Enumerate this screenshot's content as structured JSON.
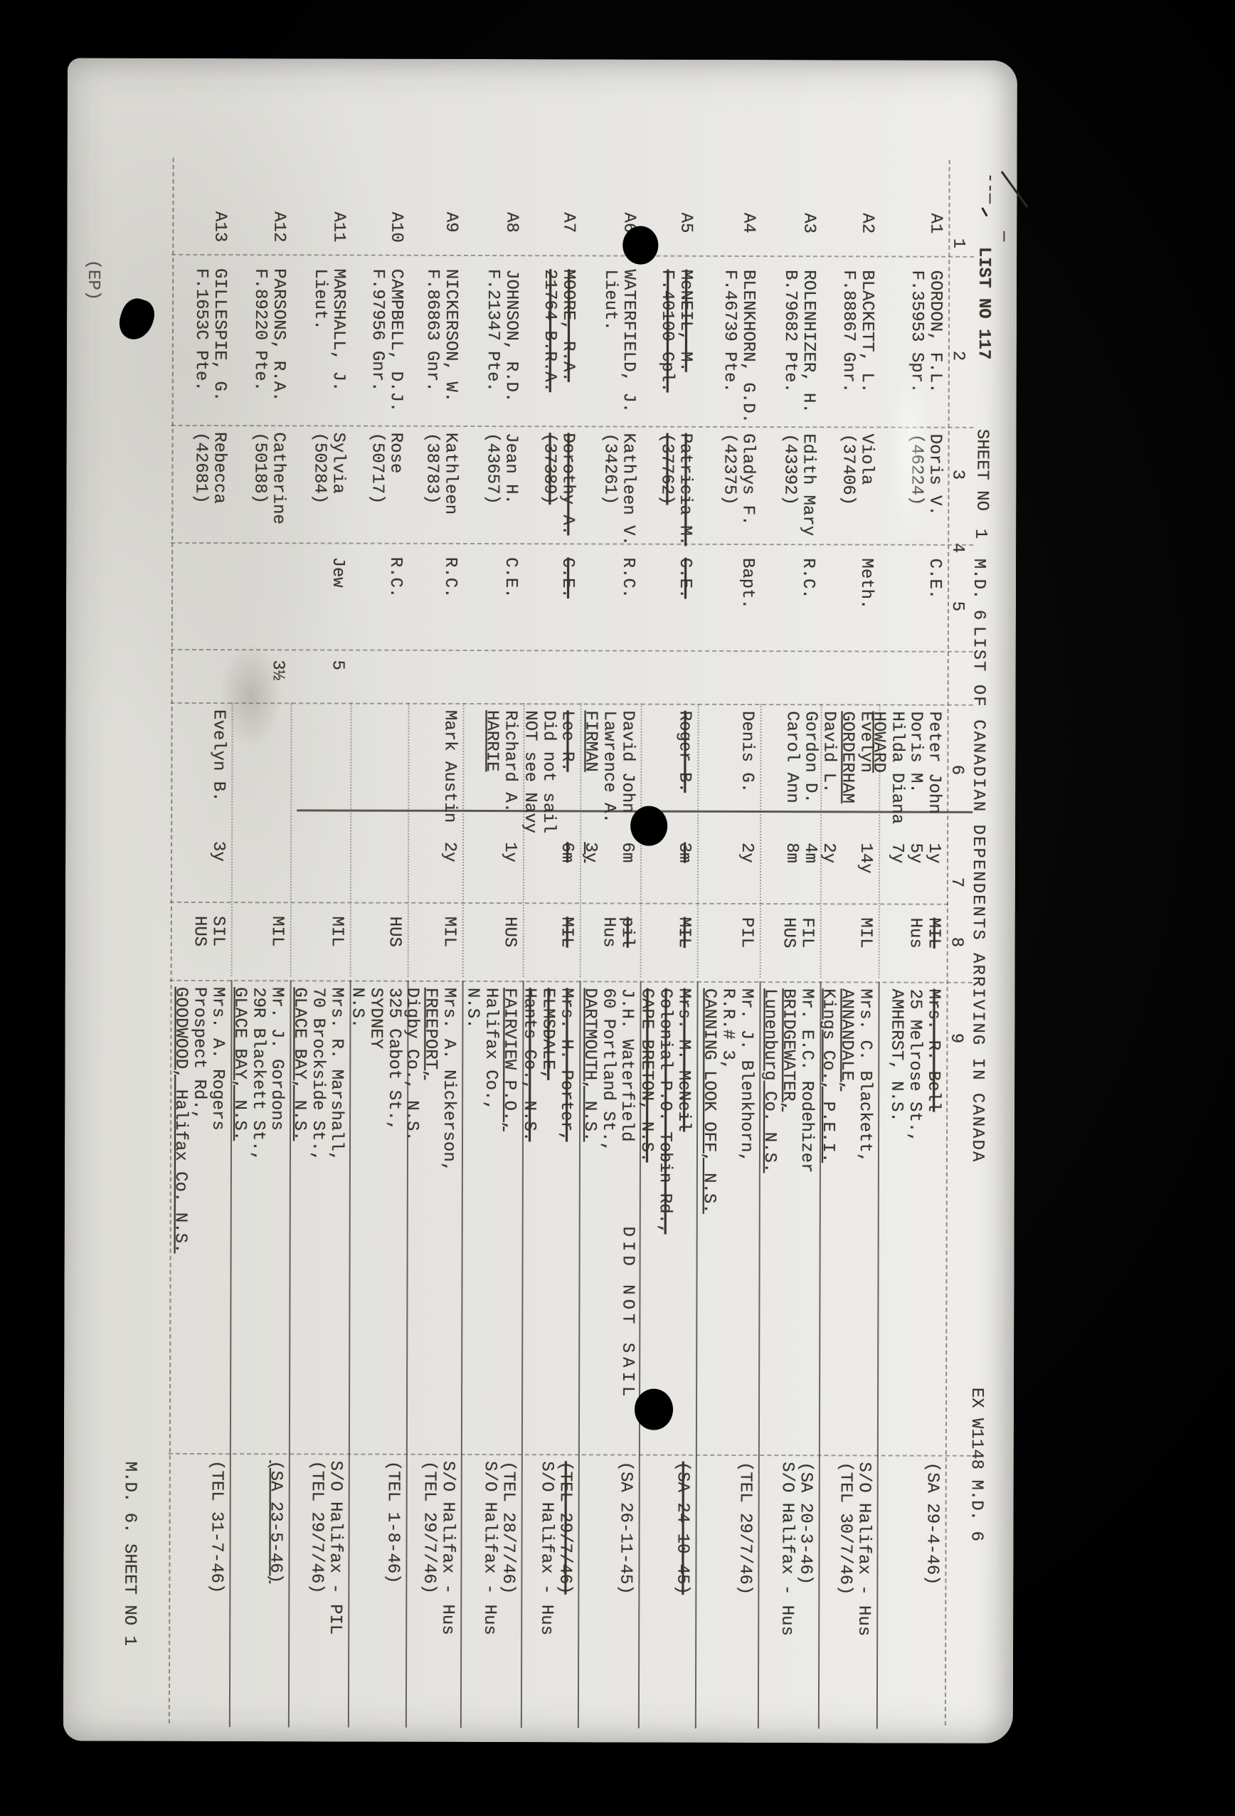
{
  "page": {
    "header": {
      "list_no": "LIST NO 117",
      "sheet_no_label": "SHEET NO",
      "sheet_no": "1",
      "md": "M.D. 6",
      "title": "LIST OF CANADIAN DEPENDENTS ARRIVING IN CANADA",
      "ex_ref": "EX W1148 M.D. 6"
    },
    "column_numbers": [
      "1",
      "2",
      "3",
      "4",
      "5",
      "6",
      "7",
      "8",
      "9"
    ],
    "notes": {
      "did_not_sail": "DID NOT SAIL"
    },
    "footer_left": "(EP)",
    "footer_right": "M.D. 6. SHEET NO 1",
    "rows": [
      {
        "sn": "A1",
        "name": [
          "GORDON, F.L.",
          "F.35953 Spr."
        ],
        "wife": [
          "Doris V.",
          "(46224)"
        ],
        "religion": "C.E.",
        "n5": "",
        "kids": [
          {
            "n": "Peter John",
            "a": "1y"
          },
          {
            "n": "Doris M.",
            "a": "5y"
          },
          {
            "n": "Hilda Diana",
            "a": "7y"
          },
          {
            "n": "HOWARD",
            "a": "",
            "f": "u"
          }
        ],
        "rel": [
          [
            "MIL",
            "s"
          ],
          [
            "Hus",
            ""
          ]
        ],
        "addr": [
          [
            "Mrs. R. Bell",
            "s"
          ],
          [
            "25 Melrose St.,",
            ""
          ],
          [
            "AMHERST, N.S.",
            ""
          ]
        ],
        "disp": [
          [
            "(SA 29-4-46)",
            ""
          ]
        ]
      },
      {
        "sn": "A2",
        "name": [
          "BLACKETT, L.",
          "F.88867 Gnr."
        ],
        "wife": [
          "Viola",
          "(37406)"
        ],
        "religion": "Meth.",
        "n5": "",
        "kids": [
          {
            "n": "Evelyn",
            "a": "14y"
          },
          {
            "n": "GORDERHAM",
            "a": "",
            "f": "u"
          },
          {
            "n": "David L.",
            "a": "2y"
          },
          {
            "n": "Gordon D.",
            "a": "4m"
          },
          {
            "n": "Carol Ann",
            "a": "8m"
          }
        ],
        "rel": [
          [
            "MIL",
            ""
          ]
        ],
        "addr": [
          [
            "Mrs. C. Blackett,",
            ""
          ],
          [
            "ANNANDALE,",
            "u"
          ],
          [
            "Kings Co., P.E.I.",
            "u"
          ]
        ],
        "disp": [
          [
            "S/O Halifax - Hus",
            ""
          ],
          [
            "(TEL 30/7/46)",
            ""
          ]
        ]
      },
      {
        "sn": "A3",
        "name": [
          "ROLENHIZER, H.",
          "B.79682 Pte."
        ],
        "wife": [
          "Edith Mary",
          "(43392)"
        ],
        "religion": "R.C.",
        "n5": "",
        "kids": [],
        "rel": [
          [
            "FIL",
            ""
          ],
          [
            "HUS",
            ""
          ]
        ],
        "addr": [
          [
            "Mr. E.C. Rodehizer",
            ""
          ],
          [
            "BRIDGEWATER,",
            "u"
          ],
          [
            "Lunenburg Co. N.S.",
            "u"
          ]
        ],
        "disp": [
          [
            "(SA 20-3-46)",
            ""
          ],
          [
            "S/O Halifax - Hus",
            ""
          ]
        ]
      },
      {
        "sn": "A4",
        "name": [
          "BLENKHORN, G.D.",
          "F.46739 Pte."
        ],
        "wife": [
          "Gladys F.",
          "(42375)"
        ],
        "religion": "Bapt.",
        "n5": "",
        "kids": [
          {
            "n": "Denis G.",
            "a": "2y"
          }
        ],
        "rel": [
          [
            "PIL",
            ""
          ]
        ],
        "addr": [
          [
            "Mr. J. Blenkhorn,",
            ""
          ],
          [
            "R.R.# 3,",
            ""
          ],
          [
            "CANNING LOOK OFF, N.S.",
            "u"
          ]
        ],
        "disp": [
          [
            "(TEL 29/7/46)",
            ""
          ]
        ]
      },
      {
        "sn": "A5",
        "name": [
          [
            "McNEIL, M.",
            "s"
          ],
          [
            "F.40100 Cpl.",
            "s"
          ]
        ],
        "wife": [
          [
            "Patricia M.",
            "s"
          ],
          [
            "(37762)",
            "s"
          ]
        ],
        "religion": [
          "C.E.",
          "s"
        ],
        "n5": "",
        "kids": [
          {
            "n": "Roger B.",
            "a": "3m",
            "f": "s"
          }
        ],
        "rel": [
          [
            "MIL",
            "s"
          ]
        ],
        "addr": [
          [
            "Mrs. M. McNeil",
            "s"
          ],
          [
            "Colonial P.O. Tobin Rd.,",
            "s"
          ],
          [
            "CAPE BRETON, N.S.",
            "s"
          ]
        ],
        "disp": [
          [
            "(SA 24-10-45)",
            "s"
          ]
        ]
      },
      {
        "sn": "A6",
        "name": [
          "WATERFIELD, J.",
          "Lieut."
        ],
        "wife": [
          "Kathleen V.",
          "(34261)"
        ],
        "religion": "R.C.",
        "n5": "",
        "kids": [
          {
            "n": "David John",
            "a": "6m"
          },
          {
            "n": "Lawrence A.",
            "a": ""
          },
          {
            "n": "FIRMAN",
            "a": "3y",
            "f": "u"
          }
        ],
        "rel": [
          [
            "pil",
            "s"
          ],
          [
            "Hus",
            ""
          ]
        ],
        "addr": [
          [
            "J.H. Waterfield",
            ""
          ],
          [
            "60 Portland St.,",
            ""
          ],
          [
            "DARTMOUTH, N.S.",
            "u"
          ]
        ],
        "disp": [
          [
            "(SA 26-11-45)",
            ""
          ]
        ]
      },
      {
        "sn": "A7",
        "name": [
          [
            "MOORE, R.A.",
            "s"
          ],
          [
            "21764 B.R.A.",
            "s"
          ]
        ],
        "wife": [
          [
            "Dorothy A.",
            "s"
          ],
          [
            "(37389)",
            "s"
          ]
        ],
        "religion": [
          "C.E.",
          "s"
        ],
        "n5": "",
        "kids": [
          {
            "n": "Lee R.",
            "a": "6m",
            "f": "s"
          },
          {
            "n": "Did not sail",
            "a": ""
          },
          {
            "n": "NOT see Navy",
            "a": ""
          }
        ],
        "rel": [
          [
            "MIL",
            "s"
          ]
        ],
        "addr": [
          [
            "Mrs. H. Porter,",
            "s"
          ],
          [
            "ELMSDALE,",
            "s"
          ],
          [
            "Hants Co., N.S.",
            "s"
          ]
        ],
        "disp": [
          [
            "(TEL 29/7/46)",
            "s"
          ],
          [
            "S/O Halifax - Hus",
            ""
          ]
        ]
      },
      {
        "sn": "A8",
        "name": [
          "JOHNSON, R.D.",
          "F.21347 Pte."
        ],
        "wife": [
          "Jean H.",
          "(43657)"
        ],
        "religion": "C.E.",
        "n5": "",
        "kids": [
          {
            "n": "Richard A.",
            "a": "1y"
          },
          {
            "n": "HARRIE",
            "a": "",
            "f": "u"
          }
        ],
        "rel": [
          [
            "HUS",
            ""
          ]
        ],
        "addr": [
          [
            "FAIRVIEW P.O.,",
            "u"
          ],
          [
            "Halifax Co.,",
            ""
          ],
          [
            "N.S.",
            ""
          ]
        ],
        "disp": [
          [
            "(TEL 28/7/46)",
            ""
          ],
          [
            "S/O Halifax - Hus",
            ""
          ]
        ]
      },
      {
        "sn": "A9",
        "name": [
          "NICKERSON, W.",
          "F.86863 Gnr."
        ],
        "wife": [
          "Kathleen",
          "(38783)"
        ],
        "religion": "R.C.",
        "n5": "",
        "kids": [
          {
            "n": "Mark Austin",
            "a": "2y"
          }
        ],
        "rel": [
          [
            "MIL",
            ""
          ]
        ],
        "addr": [
          [
            "Mrs. A. Nickerson,",
            ""
          ],
          [
            "FREEPORT,",
            "u"
          ],
          [
            "Digby Co., N.S.",
            ""
          ]
        ],
        "disp": [
          [
            "S/O Halifax - Hus",
            ""
          ],
          [
            "(TEL 29/7/46)",
            ""
          ]
        ]
      },
      {
        "sn": "A10",
        "name": [
          "CAMPBELL, D.J.",
          "F.97956 Gnr."
        ],
        "wife": [
          "Rose",
          "(50717)"
        ],
        "religion": "R.C.",
        "n5": "",
        "kids": [],
        "rel": [
          [
            "HUS",
            ""
          ]
        ],
        "addr": [
          [
            "325 Cabot St.,",
            ""
          ],
          [
            "SYDNEY",
            ""
          ],
          [
            "N.S.",
            ""
          ]
        ],
        "disp": [
          [
            "(TEL 1-8-46)",
            ""
          ]
        ]
      },
      {
        "sn": "A11",
        "name": [
          "MARSHALL, J.",
          "Lieut."
        ],
        "wife": [
          "Sylvia",
          "(50284)"
        ],
        "religion": "Jew",
        "n5": "5",
        "kids": [],
        "rel": [
          [
            "MIL",
            ""
          ]
        ],
        "addr": [
          [
            "Mrs. R. Marshall,",
            ""
          ],
          [
            "70 Brockside St.,",
            ""
          ],
          [
            "GLACE BAY, N.S.",
            "u"
          ]
        ],
        "disp": [
          [
            "S/O Halifax - PIL",
            ""
          ],
          [
            "(TEL 29/7/46)",
            ""
          ]
        ]
      },
      {
        "sn": "A12",
        "name": [
          "PARSONS, R.A.",
          "F.89220 Pte."
        ],
        "wife": [
          "Catherine",
          "(50188)"
        ],
        "religion": "",
        "n5": "3½",
        "kids": [],
        "rel": [
          [
            "MIL",
            ""
          ]
        ],
        "addr": [
          [
            "Mr. J. Gordons",
            ""
          ],
          [
            "29R Blackett St.,",
            ""
          ],
          [
            "GLACE BAY, N.S.",
            "u"
          ]
        ],
        "disp": [
          [
            "(SA 23-5-46)",
            "u"
          ]
        ]
      },
      {
        "sn": "A13",
        "name": [
          "GILLESPIE, G.",
          "F.1653C Pte."
        ],
        "wife": [
          "Rebecca",
          "(42681)"
        ],
        "religion": "",
        "n5": "",
        "kids": [
          {
            "n": "Evelyn B.",
            "a": "3y"
          }
        ],
        "rel": [
          [
            "SIL",
            ""
          ],
          [
            "HUS",
            ""
          ]
        ],
        "addr": [
          [
            "Mrs. A. Rogers",
            ""
          ],
          [
            "Prospect Rd.,",
            ""
          ],
          [
            "GOODWOOD, Halifax Co. N.S.",
            "u"
          ]
        ],
        "disp": [
          [
            "(TEL 31-7-46)",
            ""
          ]
        ]
      }
    ]
  }
}
